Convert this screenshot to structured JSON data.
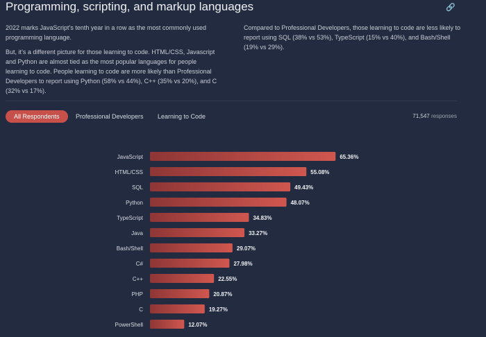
{
  "header": {
    "title": "Programming, scripting, and markup languages",
    "link_icon": "link-icon"
  },
  "paragraphs": [
    "2022 marks JavaScript’s tenth year in a row as the most commonly used programming language.",
    "But, it’s a different picture for those learning to code. HTML/CSS, Javascript and Python are almost tied as the most popular languages for people learning to code. People learning to code are more likely than Professional Developers to report using Python (58% vs 44%), C++ (35% vs 20%), and C (32% vs 17%).",
    "Compared to Professional Developers, those learning to code are less likely to report using SQL (38% vs 53%), TypeScript (15% vs 40%), and Bash/Shell (19% vs 29%)."
  ],
  "tabs": [
    {
      "label": "All Respondents",
      "active": true
    },
    {
      "label": "Professional Developers"
    },
    {
      "label": "Learning to Code"
    }
  ],
  "responses": {
    "count": "71,547",
    "label": "responses"
  },
  "chart_data": {
    "type": "bar",
    "orientation": "horizontal",
    "categories": [
      "JavaScript",
      "HTML/CSS",
      "SQL",
      "Python",
      "TypeScript",
      "Java",
      "Bash/Shell",
      "C#",
      "C++",
      "PHP",
      "C",
      "PowerShell"
    ],
    "values": [
      65.36,
      55.08,
      49.43,
      48.07,
      34.83,
      33.27,
      29.07,
      27.98,
      22.55,
      20.87,
      19.27,
      12.07
    ],
    "labels": [
      "65.36%",
      "55.08%",
      "49.43%",
      "48.07%",
      "34.83%",
      "33.27%",
      "29.07%",
      "27.98%",
      "22.55%",
      "20.87%",
      "19.27%",
      "12.07%"
    ],
    "bar_color": [
      "#8e3636",
      "#d0574f"
    ],
    "grid": false
  }
}
